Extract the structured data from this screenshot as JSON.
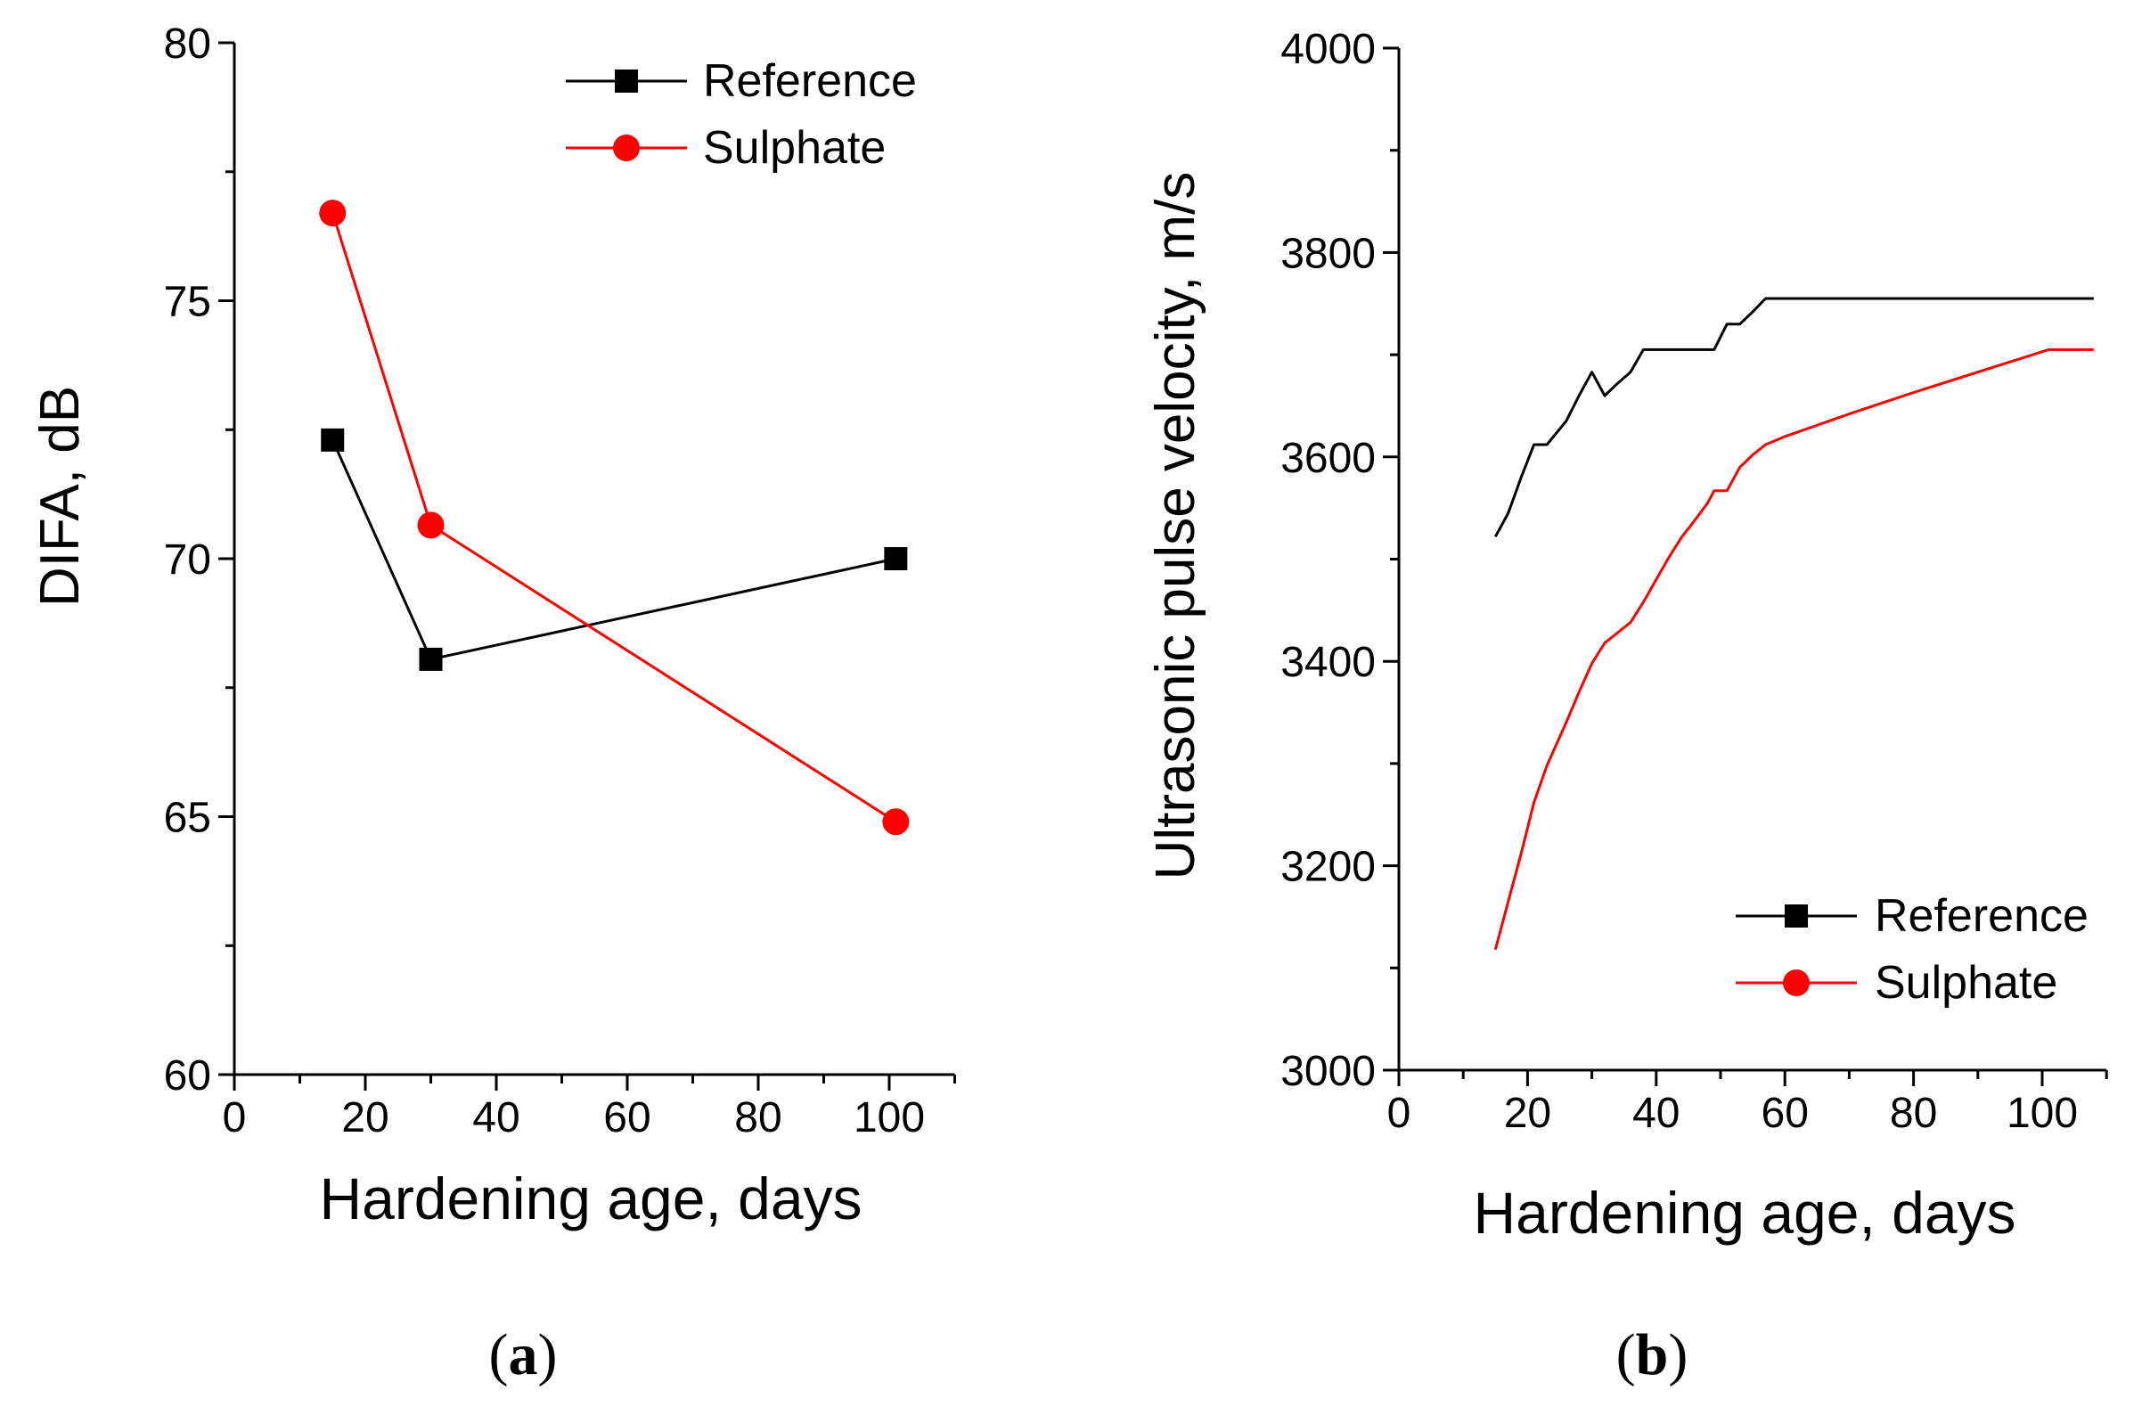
{
  "chart_data": [
    {
      "type": "line",
      "caption": "(a)",
      "caption_letter": "a",
      "xlabel": "Hardening age, days",
      "ylabel": "DIFA, dB",
      "xlim": [
        0,
        110
      ],
      "ylim": [
        60,
        80
      ],
      "xticks": [
        0,
        20,
        40,
        60,
        80,
        100
      ],
      "yticks": [
        60,
        65,
        70,
        75,
        80
      ],
      "x_minor_step": 10,
      "y_minor_step": 2.5,
      "legend_position": "top-right",
      "series": [
        {
          "name": "Reference",
          "color": "#000000",
          "marker": "square",
          "x": [
            15,
            30,
            101
          ],
          "y": [
            72.3,
            68.05,
            70.0
          ]
        },
        {
          "name": "Sulphate",
          "color": "#ff0000",
          "marker": "circle",
          "x": [
            15,
            30,
            101
          ],
          "y": [
            76.7,
            70.65,
            64.9
          ]
        }
      ]
    },
    {
      "type": "line",
      "caption": "(b)",
      "caption_letter": "b",
      "xlabel": "Hardening age, days",
      "ylabel": "Ultrasonic pulse velocity, m/s",
      "xlim": [
        0,
        110
      ],
      "ylim": [
        3000,
        4000
      ],
      "xticks": [
        0,
        20,
        40,
        60,
        80,
        100
      ],
      "yticks": [
        3000,
        3200,
        3400,
        3600,
        3800,
        4000
      ],
      "x_minor_step": 10,
      "y_minor_step": 100,
      "legend_position": "bottom-right",
      "series": [
        {
          "name": "Reference",
          "color": "#000000",
          "marker": "square",
          "x": [
            15,
            17,
            19,
            21,
            23,
            26,
            28,
            30,
            32,
            34,
            36,
            38,
            40,
            42,
            44,
            46,
            48,
            49,
            51,
            53,
            55,
            57,
            60,
            70,
            80,
            90,
            100,
            108
          ],
          "y": [
            3522,
            3545,
            3580,
            3612,
            3612,
            3635,
            3660,
            3683,
            3660,
            3672,
            3683,
            3705,
            3705,
            3705,
            3705,
            3705,
            3705,
            3705,
            3730,
            3730,
            3742,
            3755,
            3755,
            3755,
            3755,
            3755,
            3755,
            3755
          ]
        },
        {
          "name": "Sulphate",
          "color": "#ff0000",
          "marker": "circle",
          "x": [
            15,
            17,
            19,
            21,
            23,
            26,
            28,
            30,
            32,
            34,
            36,
            38,
            40,
            42,
            44,
            46,
            48,
            49,
            51,
            53,
            55,
            57,
            60,
            70,
            80,
            90,
            100,
            101,
            108
          ],
          "y": [
            3118,
            3165,
            3212,
            3262,
            3298,
            3340,
            3370,
            3398,
            3418,
            3428,
            3438,
            3458,
            3480,
            3502,
            3522,
            3538,
            3555,
            3567,
            3567,
            3590,
            3602,
            3612,
            3620,
            3642,
            3663,
            3683,
            3703,
            3705,
            3705
          ]
        }
      ]
    }
  ]
}
